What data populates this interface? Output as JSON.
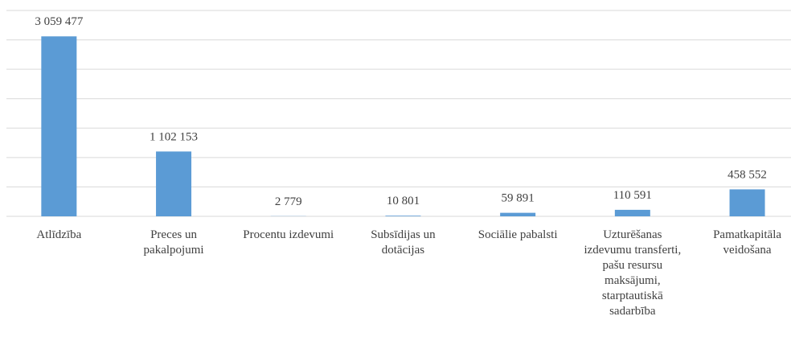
{
  "chart_data": {
    "type": "bar",
    "categories": [
      "Atlīdzība",
      "Preces un pakalpojumi",
      "Procentu izdevumi",
      "Subsīdijas un dotācijas",
      "Sociālie pabalsti",
      "Uzturēšanas izdevumu transferti, pašu resursu maksājumi, starptautiskā sadarbība",
      "Pamatkapitāla veidošana"
    ],
    "values": [
      3059477,
      1102153,
      2779,
      10801,
      59891,
      110591,
      458552
    ],
    "value_labels": [
      "3 059 477",
      "1 102 153",
      "2 779",
      "10 801",
      "59 891",
      "110 591",
      "458 552"
    ],
    "color": "#5b9bd5",
    "ylim": [
      0,
      3500000
    ],
    "yticks": [
      0,
      500000,
      1000000,
      1500000,
      2000000,
      2500000,
      3000000,
      3500000
    ],
    "grid": true
  }
}
